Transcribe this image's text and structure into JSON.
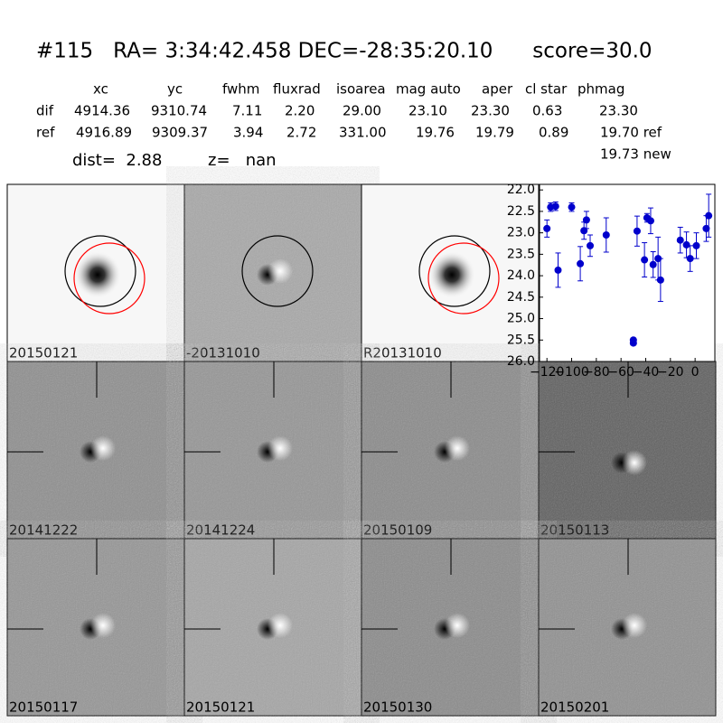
{
  "header": {
    "title": "#115   RA= 3:34:42.458 DEC=-28:35:20.10      score=30.0"
  },
  "table": {
    "columns": [
      "xc",
      "yc",
      "fwhm",
      "fluxrad",
      "isoarea",
      "mag auto",
      "aper",
      "cl star",
      "phmag"
    ],
    "rows": [
      [
        "dif",
        "4914.36",
        "9310.74",
        "7.11",
        "2.20",
        "29.00",
        "23.10",
        "23.30",
        "0.63",
        "23.30"
      ],
      [
        "ref",
        "4916.89",
        "9309.37",
        "3.94",
        "2.72",
        "331.00",
        "19.76",
        "19.79",
        "0.89",
        "19.70 ref"
      ]
    ],
    "extra": "19.73 new",
    "dist": "dist=  2.88",
    "z": "z=   nan"
  },
  "stamps": [
    {
      "label": "20150121"
    },
    {
      "label": "-20131010"
    },
    {
      "label": "R20131010"
    },
    {
      "label": "20141222"
    },
    {
      "label": "20141224"
    },
    {
      "label": "20150109"
    },
    {
      "label": "20150113"
    },
    {
      "label": "20150117"
    },
    {
      "label": "20150121",
      "color": "#ff0000"
    },
    {
      "label": "20150130"
    },
    {
      "label": "20150201"
    }
  ],
  "chart_data": {
    "type": "scatter",
    "x": [
      -120,
      -117,
      -113,
      -111,
      -100,
      -93,
      -90,
      -88,
      -85,
      -72,
      -50,
      -50,
      -47,
      -41,
      -39,
      -36,
      -34,
      -30,
      -28,
      -12,
      -7,
      -4,
      1,
      9,
      11
    ],
    "series": [
      {
        "color": "#0000cc",
        "values": [
          22.9,
          22.4,
          22.38,
          23.87,
          22.4,
          23.72,
          22.95,
          22.7,
          23.3,
          23.05,
          25.5,
          25.57,
          22.96,
          23.63,
          22.65,
          22.72,
          23.74,
          23.6,
          24.1,
          23.17,
          23.28,
          23.6,
          23.3,
          22.9,
          22.6
        ],
        "errors": [
          0.2,
          0.1,
          0.1,
          0.4,
          0.1,
          0.4,
          0.2,
          0.2,
          0.25,
          0.4,
          0.05,
          0.05,
          0.35,
          0.4,
          0.1,
          0.3,
          0.3,
          0.5,
          0.5,
          0.3,
          0.3,
          0.3,
          0.3,
          0.3,
          0.5
        ]
      }
    ],
    "xlim": [
      -126,
      16
    ],
    "ylim": [
      26.0,
      21.87
    ],
    "xticks": [
      {
        "value": -120,
        "label": "−120"
      },
      {
        "value": -100,
        "label": "−100"
      },
      {
        "value": -80,
        "label": "−80"
      },
      {
        "value": -60,
        "label": "−60"
      },
      {
        "value": -40,
        "label": "−40"
      },
      {
        "value": -20,
        "label": "−20"
      },
      0
    ],
    "yticks": [
      {
        "value": 22.0,
        "label": "22.0"
      },
      {
        "value": 22.5,
        "label": "22.5"
      },
      {
        "value": 23.0,
        "label": "23.0"
      },
      {
        "value": 23.5,
        "label": "23.5"
      },
      {
        "value": 24.0,
        "label": "24.0"
      },
      {
        "value": 24.5,
        "label": "24.5"
      },
      {
        "value": 25.0,
        "label": "25.0"
      },
      {
        "value": 25.5,
        "label": "25.5"
      },
      {
        "value": 26.0,
        "label": "26.0"
      }
    ]
  }
}
